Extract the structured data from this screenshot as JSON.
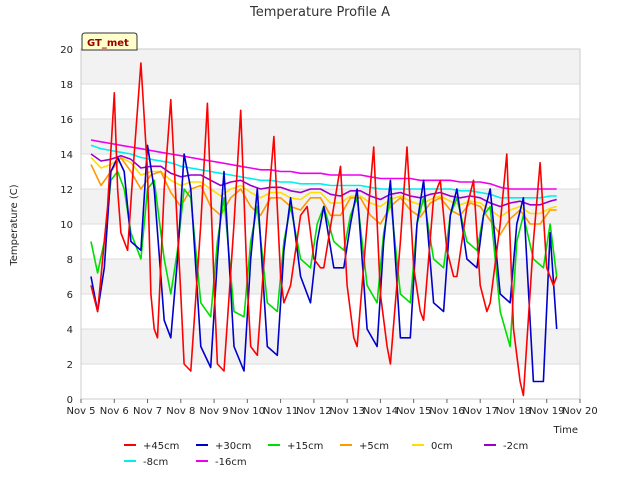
{
  "chart_data": {
    "type": "line",
    "title": "Temperature Profile A",
    "xlabel": "Time",
    "ylabel": "Temperature (C)",
    "badge": "GT_met",
    "x_ticks": [
      "Nov 5",
      "Nov 6",
      "Nov 7",
      "Nov 8",
      "Nov 9",
      "Nov 10",
      "Nov 11",
      "Nov 12",
      "Nov 13",
      "Nov 14",
      "Nov 15",
      "Nov 16",
      "Nov 17",
      "Nov 18",
      "Nov 19",
      "Nov 20"
    ],
    "x_range_days": [
      5,
      20
    ],
    "ylim": [
      0,
      20
    ],
    "y_ticks": [
      0,
      2,
      4,
      6,
      8,
      10,
      12,
      14,
      16,
      18,
      20
    ],
    "grid": true,
    "legend_position": "bottom",
    "series": [
      {
        "name": "+45cm",
        "color": "#ff0000",
        "x": [
          5.3,
          5.5,
          5.6,
          5.8,
          6.0,
          6.1,
          6.2,
          6.4,
          6.6,
          6.8,
          7.0,
          7.1,
          7.2,
          7.3,
          7.5,
          7.7,
          8.0,
          8.1,
          8.3,
          8.6,
          8.8,
          9.0,
          9.1,
          9.3,
          9.6,
          9.8,
          10.0,
          10.1,
          10.3,
          10.6,
          10.8,
          11.0,
          11.1,
          11.3,
          11.6,
          11.8,
          12.0,
          12.2,
          12.3,
          12.6,
          12.8,
          13.0,
          13.2,
          13.3,
          13.6,
          13.8,
          14.0,
          14.2,
          14.3,
          14.6,
          14.8,
          15.0,
          15.2,
          15.3,
          15.6,
          15.8,
          16.0,
          16.2,
          16.3,
          16.6,
          16.8,
          17.0,
          17.2,
          17.3,
          17.6,
          17.8,
          18.0,
          18.2,
          18.3,
          18.6,
          18.8,
          19.0,
          19.2,
          19.3
        ],
        "values": [
          6.5,
          5.0,
          7.0,
          11.0,
          17.5,
          12.0,
          9.5,
          8.5,
          14.0,
          19.2,
          13.0,
          6.0,
          4.0,
          3.5,
          12.0,
          17.1,
          6.0,
          2.0,
          1.6,
          10.0,
          16.9,
          6.5,
          2.0,
          1.6,
          10.0,
          16.5,
          6.5,
          3.0,
          2.5,
          10.5,
          15.0,
          7.0,
          5.5,
          6.5,
          10.5,
          11.0,
          8.0,
          7.5,
          7.5,
          11.0,
          13.3,
          6.5,
          3.5,
          3.0,
          10.0,
          14.4,
          6.0,
          3.0,
          2.0,
          9.0,
          14.4,
          7.5,
          5.0,
          4.5,
          11.5,
          12.5,
          8.5,
          7.0,
          7.0,
          11.0,
          12.5,
          6.5,
          5.0,
          5.5,
          10.0,
          14.0,
          4.0,
          1.0,
          0.2,
          9.0,
          13.5,
          7.5,
          6.5,
          7.0
        ]
      },
      {
        "name": "+30cm",
        "color": "#0000cc",
        "x": [
          5.3,
          5.5,
          5.7,
          5.9,
          6.1,
          6.3,
          6.5,
          6.8,
          7.0,
          7.2,
          7.5,
          7.7,
          7.9,
          8.1,
          8.3,
          8.6,
          8.9,
          9.1,
          9.3,
          9.6,
          9.9,
          10.1,
          10.3,
          10.6,
          10.9,
          11.1,
          11.3,
          11.6,
          11.9,
          12.1,
          12.3,
          12.6,
          12.9,
          13.1,
          13.3,
          13.6,
          13.9,
          14.1,
          14.3,
          14.6,
          14.9,
          15.1,
          15.3,
          15.6,
          15.9,
          16.1,
          16.3,
          16.6,
          16.9,
          17.1,
          17.3,
          17.6,
          17.9,
          18.1,
          18.3,
          18.6,
          18.9,
          19.1,
          19.3
        ],
        "values": [
          7.0,
          5.0,
          7.5,
          13.0,
          13.8,
          13.0,
          9.0,
          8.5,
          14.5,
          12.0,
          4.5,
          3.5,
          8.0,
          14.0,
          12.0,
          3.0,
          1.8,
          8.0,
          13.0,
          3.0,
          1.6,
          8.0,
          12.0,
          3.0,
          2.5,
          8.5,
          11.5,
          7.0,
          5.5,
          9.0,
          11.0,
          7.5,
          7.5,
          10.0,
          12.0,
          4.0,
          3.0,
          9.0,
          12.5,
          3.5,
          3.5,
          10.0,
          12.5,
          5.5,
          5.0,
          10.5,
          12.0,
          8.0,
          7.5,
          10.5,
          12.0,
          6.0,
          5.5,
          10.0,
          11.5,
          1.0,
          1.0,
          9.5,
          4.0
        ]
      },
      {
        "name": "+15cm",
        "color": "#00dd00",
        "x": [
          5.3,
          5.5,
          5.7,
          5.9,
          6.1,
          6.3,
          6.5,
          6.8,
          7.0,
          7.2,
          7.5,
          7.7,
          7.9,
          8.1,
          8.3,
          8.6,
          8.9,
          9.1,
          9.3,
          9.6,
          9.9,
          10.1,
          10.3,
          10.6,
          10.9,
          11.1,
          11.3,
          11.6,
          11.9,
          12.1,
          12.3,
          12.6,
          12.9,
          13.1,
          13.3,
          13.6,
          13.9,
          14.1,
          14.3,
          14.6,
          14.9,
          15.1,
          15.3,
          15.6,
          15.9,
          16.1,
          16.3,
          16.6,
          16.9,
          17.1,
          17.3,
          17.6,
          17.9,
          18.1,
          18.3,
          18.6,
          18.9,
          19.1,
          19.3
        ],
        "values": [
          9.0,
          7.2,
          9.0,
          12.5,
          13.0,
          12.0,
          9.5,
          8.0,
          12.0,
          12.5,
          8.0,
          6.0,
          8.5,
          12.0,
          11.5,
          5.5,
          4.7,
          9.0,
          11.5,
          5.0,
          4.7,
          9.0,
          11.0,
          5.5,
          5.0,
          9.0,
          11.0,
          8.0,
          7.5,
          10.0,
          11.0,
          9.0,
          8.5,
          10.5,
          11.5,
          6.5,
          5.5,
          9.5,
          11.5,
          6.0,
          5.5,
          10.0,
          11.5,
          8.0,
          7.5,
          10.5,
          11.5,
          9.0,
          8.5,
          10.5,
          11.0,
          5.0,
          3.0,
          9.0,
          10.5,
          8.0,
          7.5,
          10.0,
          7.0
        ]
      },
      {
        "name": "+5cm",
        "color": "#ff9900",
        "x": [
          5.3,
          5.6,
          5.9,
          6.2,
          6.5,
          6.8,
          7.1,
          7.4,
          7.7,
          8.0,
          8.3,
          8.6,
          8.9,
          9.2,
          9.5,
          9.8,
          10.1,
          10.4,
          10.7,
          11.0,
          11.3,
          11.6,
          11.9,
          12.2,
          12.5,
          12.8,
          13.1,
          13.4,
          13.7,
          14.0,
          14.3,
          14.6,
          14.9,
          15.2,
          15.5,
          15.8,
          16.1,
          16.4,
          16.7,
          17.0,
          17.3,
          17.6,
          17.9,
          18.2,
          18.5,
          18.8,
          19.1,
          19.3
        ],
        "values": [
          13.4,
          12.2,
          13.0,
          13.8,
          13.0,
          12.0,
          12.8,
          13.0,
          11.8,
          11.0,
          12.0,
          12.2,
          11.0,
          10.5,
          11.5,
          12.0,
          11.0,
          10.5,
          11.5,
          11.5,
          11.0,
          10.8,
          11.5,
          11.5,
          10.5,
          10.5,
          11.5,
          11.5,
          10.5,
          10.0,
          11.0,
          11.5,
          10.8,
          10.4,
          11.2,
          11.5,
          10.8,
          10.5,
          11.2,
          11.0,
          10.2,
          9.4,
          10.3,
          10.8,
          10.0,
          10.0,
          10.8,
          10.8
        ]
      },
      {
        "name": "0cm",
        "color": "#ffdd00",
        "x": [
          5.3,
          5.6,
          5.9,
          6.2,
          6.5,
          6.8,
          7.1,
          7.4,
          7.7,
          8.0,
          8.3,
          8.6,
          8.9,
          9.2,
          9.5,
          9.8,
          10.1,
          10.4,
          10.7,
          11.0,
          11.3,
          11.6,
          11.9,
          12.2,
          12.5,
          12.8,
          13.1,
          13.4,
          13.7,
          14.0,
          14.3,
          14.6,
          14.9,
          15.2,
          15.5,
          15.8,
          16.1,
          16.4,
          16.7,
          17.0,
          17.3,
          17.6,
          17.9,
          18.2,
          18.5,
          18.8,
          19.1,
          19.3
        ],
        "values": [
          13.8,
          13.2,
          13.4,
          13.8,
          13.5,
          12.8,
          13.0,
          13.0,
          12.5,
          12.2,
          12.4,
          12.4,
          12.0,
          11.6,
          12.0,
          12.2,
          11.8,
          11.5,
          11.8,
          11.8,
          11.5,
          11.4,
          11.8,
          11.8,
          11.2,
          11.2,
          11.6,
          11.6,
          11.2,
          11.0,
          11.4,
          11.6,
          11.3,
          11.1,
          11.4,
          11.6,
          11.3,
          11.1,
          11.3,
          11.2,
          10.8,
          10.4,
          10.8,
          11.0,
          10.6,
          10.6,
          10.9,
          11.0
        ]
      },
      {
        "name": "-2cm",
        "color": "#9900cc",
        "x": [
          5.3,
          5.6,
          5.9,
          6.2,
          6.5,
          6.8,
          7.1,
          7.4,
          7.7,
          8.0,
          8.3,
          8.6,
          8.9,
          9.2,
          9.5,
          9.8,
          10.1,
          10.4,
          10.7,
          11.0,
          11.3,
          11.6,
          11.9,
          12.2,
          12.5,
          12.8,
          13.1,
          13.4,
          13.7,
          14.0,
          14.3,
          14.6,
          14.9,
          15.2,
          15.5,
          15.8,
          16.1,
          16.4,
          16.7,
          17.0,
          17.3,
          17.6,
          17.9,
          18.2,
          18.5,
          18.8,
          19.1,
          19.3
        ],
        "values": [
          14.0,
          13.6,
          13.7,
          13.9,
          13.7,
          13.2,
          13.3,
          13.3,
          12.9,
          12.7,
          12.8,
          12.8,
          12.5,
          12.2,
          12.4,
          12.5,
          12.2,
          12.0,
          12.1,
          12.1,
          11.9,
          11.8,
          12.0,
          12.0,
          11.7,
          11.6,
          11.9,
          11.9,
          11.6,
          11.4,
          11.7,
          11.8,
          11.6,
          11.5,
          11.7,
          11.8,
          11.6,
          11.5,
          11.6,
          11.5,
          11.2,
          11.0,
          11.2,
          11.3,
          11.1,
          11.1,
          11.3,
          11.4
        ]
      },
      {
        "name": "-8cm",
        "color": "#00eeee",
        "x": [
          5.3,
          5.6,
          5.9,
          6.2,
          6.5,
          6.8,
          7.1,
          7.4,
          7.7,
          8.0,
          8.3,
          8.6,
          8.9,
          9.2,
          9.5,
          9.8,
          10.1,
          10.4,
          10.7,
          11.0,
          11.3,
          11.6,
          11.9,
          12.2,
          12.5,
          12.8,
          13.1,
          13.4,
          13.7,
          14.0,
          14.3,
          14.6,
          14.9,
          15.2,
          15.5,
          15.8,
          16.1,
          16.4,
          16.7,
          17.0,
          17.3,
          17.6,
          17.9,
          18.2,
          18.5,
          18.8,
          19.1,
          19.3
        ],
        "values": [
          14.5,
          14.3,
          14.2,
          14.1,
          14.0,
          13.8,
          13.7,
          13.6,
          13.5,
          13.3,
          13.2,
          13.1,
          13.0,
          12.9,
          12.8,
          12.7,
          12.6,
          12.5,
          12.5,
          12.4,
          12.4,
          12.3,
          12.3,
          12.3,
          12.2,
          12.2,
          12.2,
          12.2,
          12.1,
          12.0,
          12.0,
          12.0,
          12.0,
          12.0,
          12.0,
          12.0,
          12.0,
          11.9,
          11.9,
          11.8,
          11.7,
          11.5,
          11.5,
          11.5,
          11.5,
          11.5,
          11.6,
          11.6
        ]
      },
      {
        "name": "-16cm",
        "color": "#ee00ee",
        "x": [
          5.3,
          5.6,
          5.9,
          6.2,
          6.5,
          6.8,
          7.1,
          7.4,
          7.7,
          8.0,
          8.3,
          8.6,
          8.9,
          9.2,
          9.5,
          9.8,
          10.1,
          10.4,
          10.7,
          11.0,
          11.3,
          11.6,
          11.9,
          12.2,
          12.5,
          12.8,
          13.1,
          13.4,
          13.7,
          14.0,
          14.3,
          14.6,
          14.9,
          15.2,
          15.5,
          15.8,
          16.1,
          16.4,
          16.7,
          17.0,
          17.3,
          17.6,
          17.9,
          18.2,
          18.5,
          18.8,
          19.1,
          19.3
        ],
        "values": [
          14.8,
          14.7,
          14.6,
          14.5,
          14.4,
          14.3,
          14.2,
          14.1,
          14.0,
          13.9,
          13.8,
          13.7,
          13.6,
          13.5,
          13.4,
          13.3,
          13.2,
          13.1,
          13.1,
          13.0,
          13.0,
          12.9,
          12.9,
          12.9,
          12.8,
          12.8,
          12.8,
          12.8,
          12.7,
          12.6,
          12.6,
          12.6,
          12.6,
          12.5,
          12.5,
          12.5,
          12.5,
          12.4,
          12.4,
          12.4,
          12.3,
          12.1,
          12.0,
          12.0,
          12.0,
          12.0,
          12.0,
          12.0
        ]
      }
    ]
  }
}
